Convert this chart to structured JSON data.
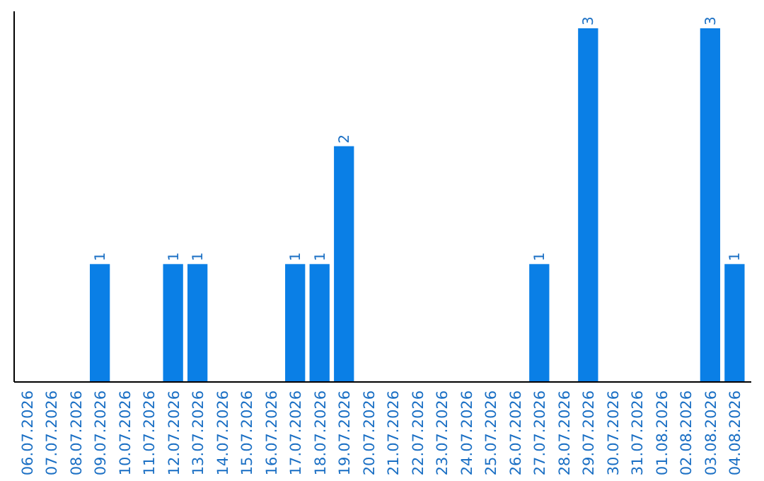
{
  "chart_data": {
    "type": "bar",
    "categories": [
      "06.07.2026",
      "07.07.2026",
      "08.07.2026",
      "09.07.2026",
      "10.07.2026",
      "11.07.2026",
      "12.07.2026",
      "13.07.2026",
      "14.07.2026",
      "15.07.2026",
      "16.07.2026",
      "17.07.2026",
      "18.07.2026",
      "19.07.2026",
      "20.07.2026",
      "21.07.2026",
      "22.07.2026",
      "23.07.2026",
      "24.07.2026",
      "25.07.2026",
      "26.07.2026",
      "27.07.2026",
      "28.07.2026",
      "29.07.2026",
      "30.07.2026",
      "31.07.2026",
      "01.08.2026",
      "02.08.2026",
      "03.08.2026",
      "04.08.2026"
    ],
    "values": [
      0,
      0,
      0,
      1,
      0,
      0,
      1,
      1,
      0,
      0,
      0,
      1,
      1,
      2,
      0,
      0,
      0,
      0,
      0,
      0,
      0,
      1,
      0,
      3,
      0,
      0,
      0,
      0,
      3,
      1
    ],
    "value_labels": [
      null,
      null,
      null,
      "1",
      null,
      null,
      "1",
      "1",
      null,
      null,
      null,
      "1",
      "1",
      "2",
      null,
      null,
      null,
      null,
      null,
      null,
      null,
      "1",
      null,
      "3",
      null,
      null,
      null,
      null,
      "3",
      "1"
    ],
    "color": "#0a7fe6",
    "grid": false
  }
}
